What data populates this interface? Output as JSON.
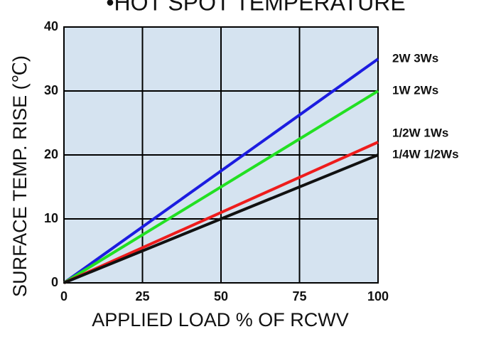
{
  "chart_data": {
    "type": "line",
    "title": "•HOT SPOT TEMPERATURE",
    "x_label": "APPLIED LOAD % OF RCWV",
    "y_label": "SURFACE TEMP. RISE (℃)",
    "x": [
      0,
      100
    ],
    "series": [
      {
        "name": "2W 3Ws",
        "color": "#1c1ce0",
        "values": [
          0,
          35
        ]
      },
      {
        "name": "1W 2Ws",
        "color": "#22e022",
        "values": [
          0,
          30
        ]
      },
      {
        "name": "1/2W 1Ws",
        "color": "#ee1c1c",
        "values": [
          0,
          22
        ]
      },
      {
        "name": "1/4W 1/2Ws",
        "color": "#111111",
        "values": [
          0,
          20
        ]
      }
    ],
    "xlim": [
      0,
      100
    ],
    "xticks": [
      0,
      25,
      50,
      75,
      100
    ],
    "ylim": [
      0,
      40
    ],
    "yticks": [
      0,
      10,
      20,
      30,
      40
    ],
    "grid": true
  }
}
